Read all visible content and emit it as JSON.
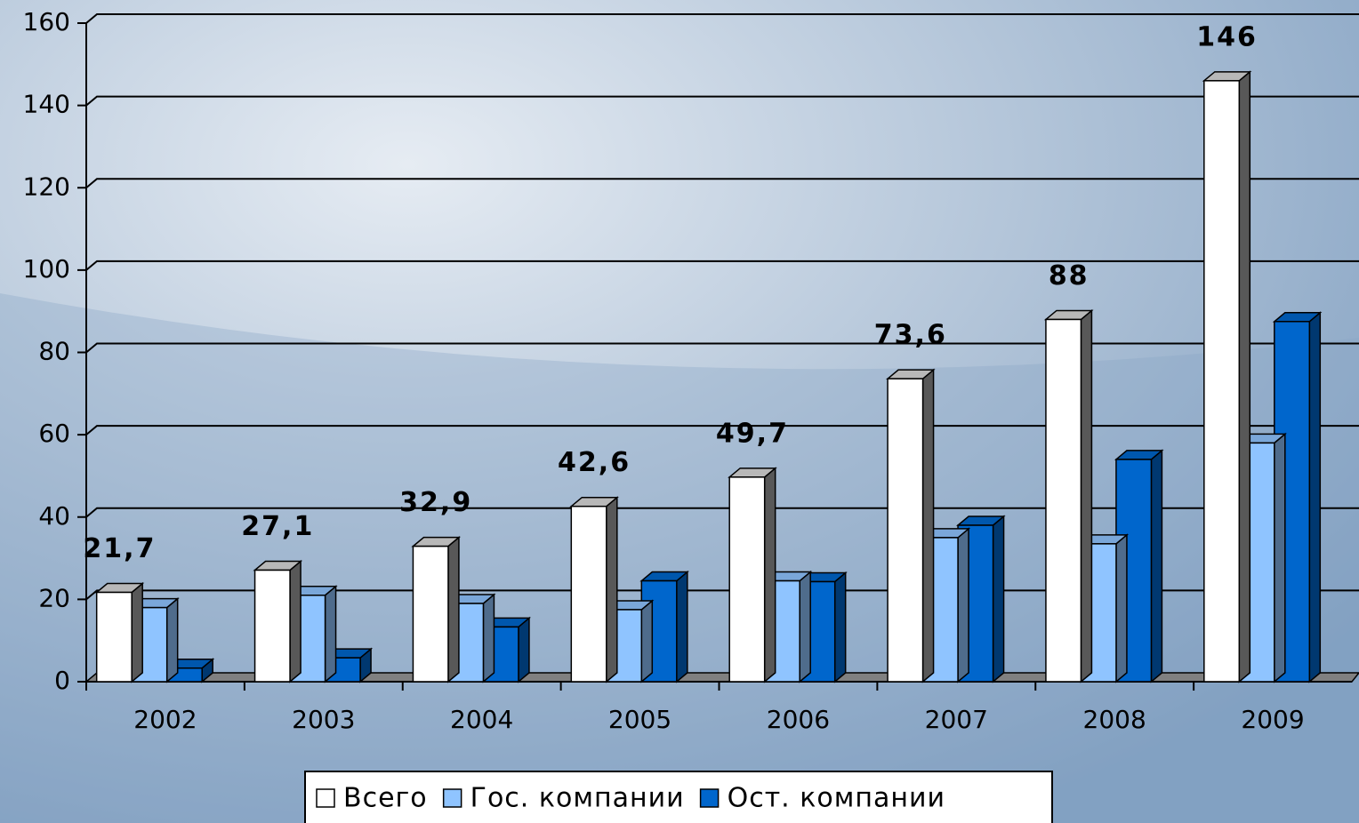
{
  "chart_data": {
    "type": "bar3d",
    "categories": [
      "2002",
      "2003",
      "2004",
      "2005",
      "2006",
      "2007",
      "2008",
      "2009"
    ],
    "series": [
      {
        "name": "Всего",
        "color": "#ffffff",
        "values": [
          21.7,
          27.1,
          32.9,
          42.6,
          49.7,
          73.6,
          88,
          146
        ],
        "value_labels": [
          "21,7",
          "27,1",
          "32,9",
          "42,6",
          "49,7",
          "73,6",
          "88",
          "146"
        ]
      },
      {
        "name": "Гос. компании",
        "color": "#8fc4ff",
        "values": [
          18,
          21,
          19,
          17.5,
          24.5,
          35,
          33.5,
          58
        ]
      },
      {
        "name": "Ост. компании",
        "color": "#0066cc",
        "values": [
          3.3,
          5.8,
          13.3,
          24.5,
          24.3,
          38,
          54,
          87.5
        ]
      }
    ],
    "ylim": [
      0,
      160
    ],
    "yticks": [
      0,
      20,
      40,
      60,
      80,
      100,
      120,
      140,
      160
    ],
    "grid": true,
    "legend": "bottom"
  }
}
